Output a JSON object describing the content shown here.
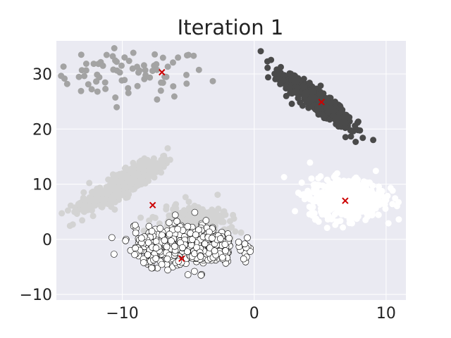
{
  "chart_data": {
    "type": "scatter",
    "title": "Iteration 1",
    "xlabel": "",
    "ylabel": "",
    "xlim": [
      -15,
      11.5
    ],
    "ylim": [
      -11,
      36
    ],
    "xticks": [
      -10,
      0,
      10
    ],
    "yticks": [
      -10,
      0,
      10,
      20,
      30
    ],
    "xtick_labels": [
      "−10",
      "0",
      "10"
    ],
    "ytick_labels": [
      "−10",
      "0",
      "10",
      "20",
      "30"
    ],
    "grid": true,
    "legend": "none",
    "colors": {
      "background": "#EAEAF2",
      "grid": "#FFFFFF",
      "centroid": "#CC0000"
    },
    "series": [
      {
        "color": "#A3A3A3",
        "edge": "none",
        "cluster_center": [
          -10,
          30
        ],
        "spread": [
          3.3,
          2.5
        ],
        "count": 80,
        "points": []
      },
      {
        "color": "#4A4A4A",
        "edge": "none",
        "cluster_center": [
          5,
          25
        ],
        "spread": "elongated diagonal, x from 0.5 to 9, y from 17 to 34",
        "count": 600,
        "points": []
      },
      {
        "color": "#D3D3D3",
        "edge": "none",
        "cluster_center": [
          -9,
          9
        ],
        "spread": "diagonal band from (-13, 5) to (-7, 15) plus (-7 to -2, 1 to 7)",
        "count": 800,
        "points": []
      },
      {
        "color": "#FFFFFF",
        "edge": "none",
        "cluster_center": [
          7,
          7.5
        ],
        "spread": [
          2.5,
          3
        ],
        "count": 600,
        "points": []
      },
      {
        "color": "#FFFFFF",
        "edge": "#000000",
        "cluster_center": [
          -5,
          -1.5
        ],
        "spread": "x from -9 to -1, y from -8 to 2.5",
        "count": 600,
        "points": []
      }
    ],
    "centroids": [
      {
        "x": -7,
        "y": 30.3
      },
      {
        "x": 5.1,
        "y": 24.9
      },
      {
        "x": -7.7,
        "y": 6.2
      },
      {
        "x": 6.9,
        "y": 7.0
      },
      {
        "x": -5.5,
        "y": -3.5
      }
    ]
  }
}
